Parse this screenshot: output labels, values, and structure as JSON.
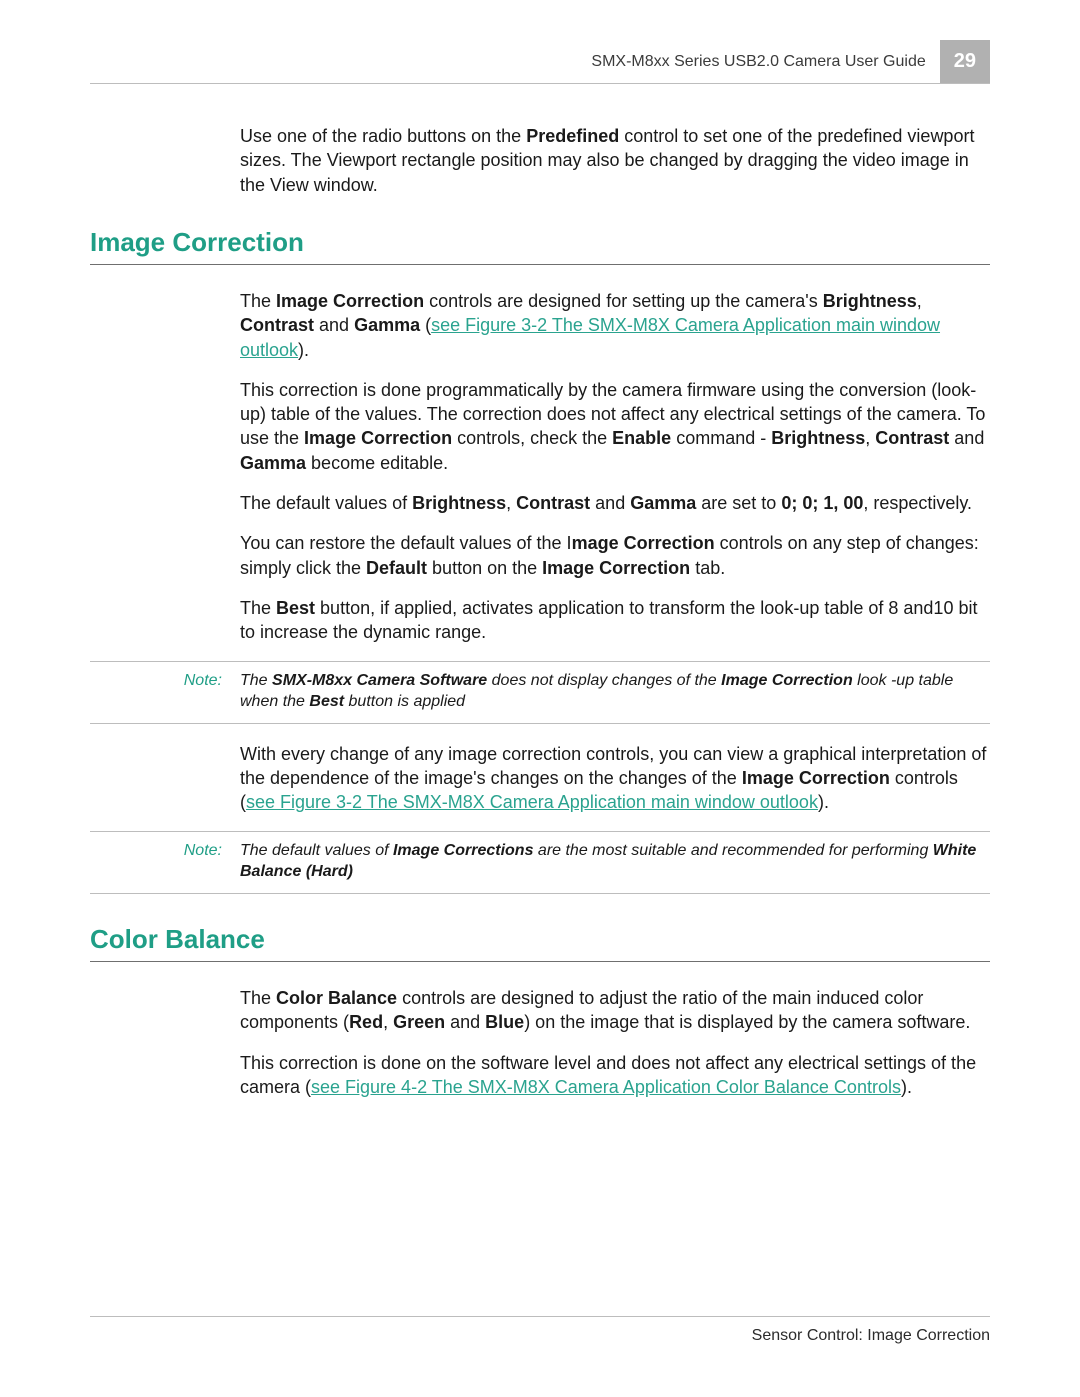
{
  "header": {
    "doc_title": "SMX-M8xx Series USB2.0 Camera User Guide",
    "page_number": "29"
  },
  "intro_para": {
    "t1": "Use one of the radio buttons on the ",
    "b1": "Predefined",
    "t2": " control to set one of the predefined viewport sizes. The Viewport rectangle position may also be changed by dragging the video image in the View window."
  },
  "section1": {
    "heading": "Image Correction",
    "p1": {
      "t1": "The ",
      "b1": "Image Correction",
      "t2": " controls are designed for setting up the camera's ",
      "b2": "Brightness",
      "t3": ", ",
      "b3": "Contrast",
      "t4": " and ",
      "b4": "Gamma",
      "t5": " (",
      "link1": "see Figure 3-2 The SMX-M8X Camera Application main window outlook",
      "t6": ")."
    },
    "p2": {
      "t1": "This correction is done programmatically by the camera firmware using the conversion (look-up) table of the values. The correction does not affect any electrical settings of the camera. To use the ",
      "b1": "Image Correction",
      "t2": " controls, check the ",
      "b2": "Enable",
      "t3": " command - ",
      "b3": "Brightness",
      "t4": ", ",
      "b4": "Contrast",
      "t5": " and ",
      "b5": "Gamma",
      "t6": " become editable."
    },
    "p3": {
      "t1": "The default values of ",
      "b1": "Brightness",
      "t2": ", ",
      "b2": "Contrast",
      "t3": " and ",
      "b3": "Gamma",
      "t4": " are set to ",
      "b4": "0; 0; 1, 00",
      "t5": ", respectively."
    },
    "p4": {
      "t1": "You can restore the default values of the I",
      "b1": "mage Correction",
      "t2": " controls on any step of changes: simply click the ",
      "b2": "Default",
      "t3": " button on the ",
      "b3": "Image Correction",
      "t4": " tab."
    },
    "p5": {
      "t1": "The ",
      "b1": "Best",
      "t2": " button, if applied, activates application to transform the look-up table of 8 and10 bit to increase the dynamic range."
    },
    "note1": {
      "label": "Note:",
      "t1": "The ",
      "b1": "SMX-M8xx Camera Software",
      "t2": " does not display changes of the ",
      "b2": "Image Correction",
      "t3": " look -up table when the ",
      "b3": "Best",
      "t4": " button is applied"
    },
    "p6": {
      "t1": "With every change of any image correction controls, you can view a graphical interpretation of the dependence of the image's changes on the changes of the ",
      "b1": "Image Correction",
      "t2": " controls (",
      "link1": "see Figure 3-2 The SMX-M8X Camera Application main window outlook",
      "t3": ")."
    },
    "note2": {
      "label": "Note:",
      "t1": "The default values of ",
      "b1": "Image Corrections",
      "t2": " are the most suitable and recommended for performing ",
      "b2": "White Balance (Hard)"
    }
  },
  "section2": {
    "heading": "Color Balance",
    "p1": {
      "t1": "The ",
      "b1": "Color Balance",
      "t2": " controls are designed to adjust the ratio of the main induced color components (",
      "b2": "Red",
      "t3": ", ",
      "b3": "Green",
      "t4": " and ",
      "b4": "Blue",
      "t5": ") on the image that is displayed by the camera software."
    },
    "p2": {
      "t1": "This correction is done on the software level and does not affect any electrical settings of the camera (",
      "link1": "see Figure 4-2 The SMX-M8X Camera Application Color Balance Controls",
      "t2": ")."
    }
  },
  "footer": {
    "text": "Sensor Control:  Image Correction"
  },
  "colors": {
    "accent": "#1f9e86",
    "link": "#2aa38f",
    "header_box_bg": "#b1b1b1",
    "rule": "#bdbdbd",
    "text": "#1a1a1a"
  }
}
